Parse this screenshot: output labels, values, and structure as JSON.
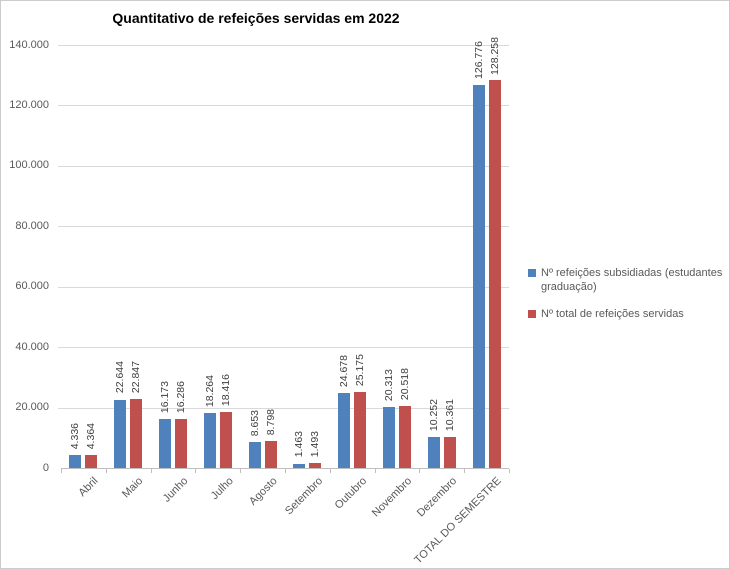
{
  "chart_data": {
    "type": "bar",
    "title": "Quantitativo de refeições servidas em 2022",
    "categories": [
      "Abril",
      "Maio",
      "Junho",
      "Julho",
      "Agosto",
      "Setembro",
      "Outubro",
      "Novembro",
      "Dezembro",
      "TOTAL DO SEMESTRE"
    ],
    "series": [
      {
        "name": "Nº refeições subsidiadas (estudantes graduação)",
        "color": "#4F81BD",
        "values": [
          4336,
          22644,
          16173,
          18264,
          8653,
          1463,
          24678,
          20313,
          10252,
          126776
        ],
        "value_labels": [
          "4.336",
          "22.644",
          "16.173",
          "18.264",
          "8.653",
          "1.463",
          "24.678",
          "20.313",
          "10.252",
          "126.776"
        ]
      },
      {
        "name": "Nº total de refeições servidas",
        "color": "#C0504D",
        "values": [
          4364,
          22847,
          16286,
          18416,
          8798,
          1493,
          25175,
          20518,
          10361,
          128258
        ],
        "value_labels": [
          "4.364",
          "22.847",
          "16.286",
          "18.416",
          "8.798",
          "1.493",
          "25.175",
          "20.518",
          "10.361",
          "128.258"
        ]
      }
    ],
    "ylim": [
      0,
      140000
    ],
    "ytick_step": 20000,
    "ytick_labels": [
      "0",
      "20.000",
      "40.000",
      "60.000",
      "80.000",
      "100.000",
      "120.000",
      "140.000"
    ],
    "grid": true,
    "legend_position": "right"
  }
}
